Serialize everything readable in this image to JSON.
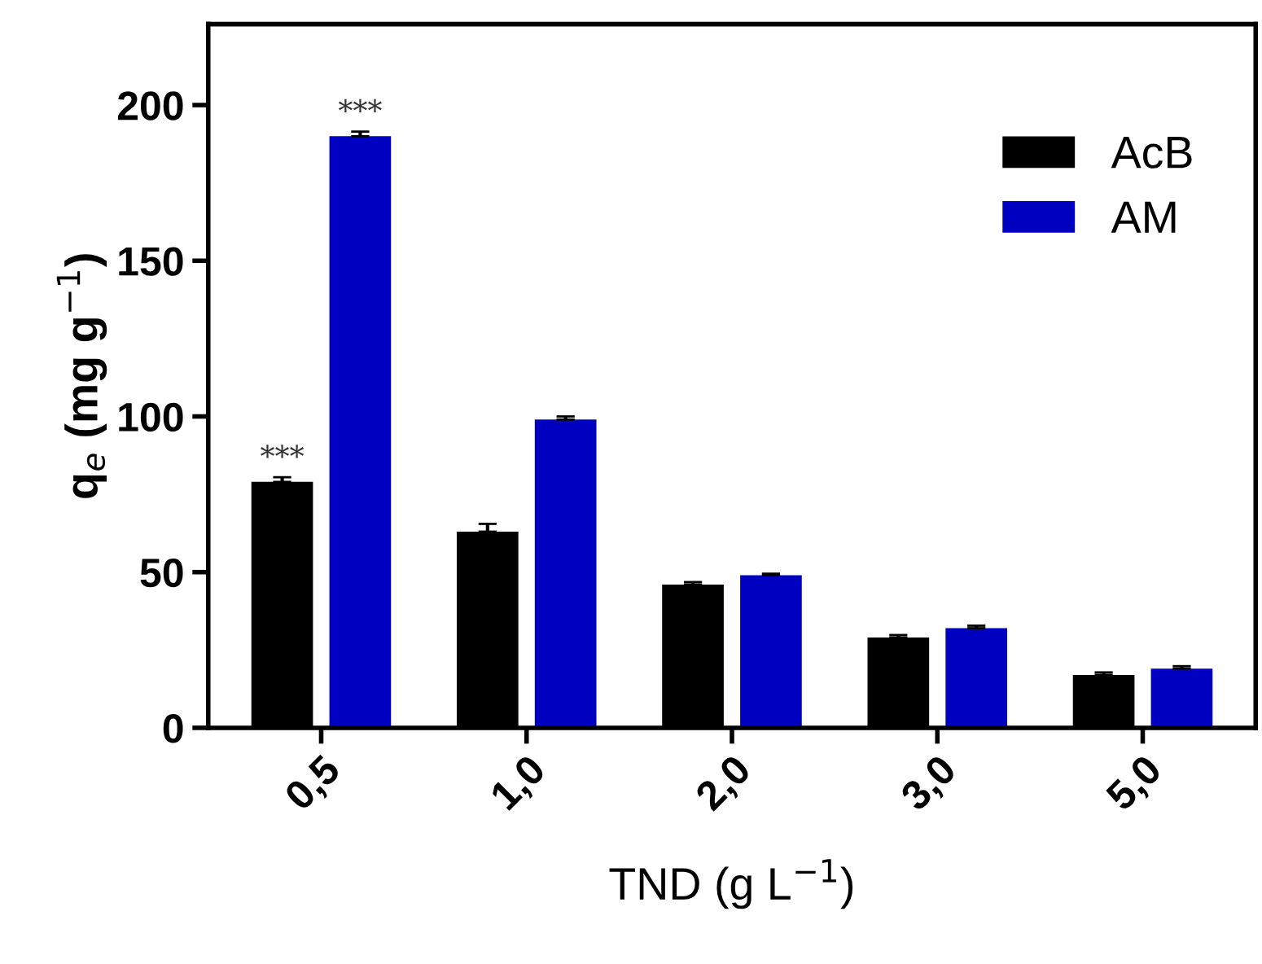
{
  "chart_data": {
    "type": "bar",
    "xlabel": "TND (g L$^{−1}$)",
    "ylabel": "q$_{e}$ (mg g$^{−1}$)",
    "categories": [
      "0,5",
      "1,0",
      "2,0",
      "3,0",
      "5,0"
    ],
    "series": [
      {
        "name": "AcB",
        "color": "#000000",
        "values": [
          79,
          63,
          46,
          29,
          17
        ],
        "errors": [
          1.5,
          2.5,
          0.8,
          0.8,
          0.8
        ]
      },
      {
        "name": "AM",
        "color": "#0000c0",
        "values": [
          190,
          99,
          49,
          32,
          19
        ],
        "errors": [
          1.5,
          1,
          0.5,
          0.8,
          0.8
        ]
      }
    ],
    "ylim": [
      0,
      226
    ],
    "yticks": [
      0,
      50,
      100,
      150,
      200
    ],
    "legend": "top right",
    "grid": false,
    "annotations": [
      "***",
      "***"
    ]
  }
}
